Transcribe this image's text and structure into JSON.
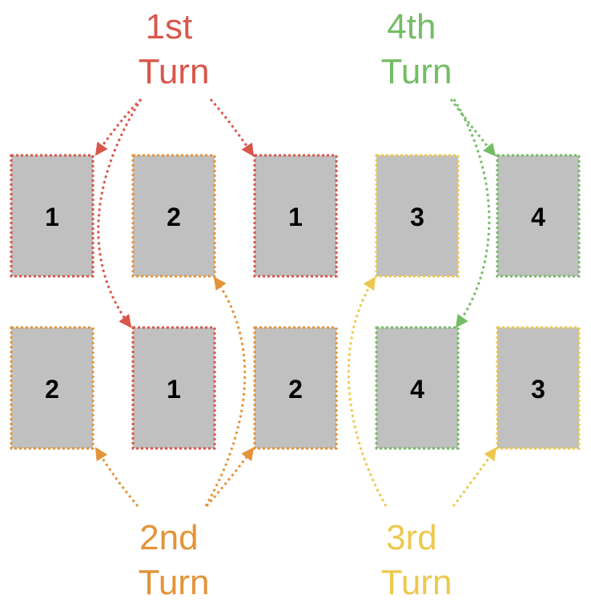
{
  "turns": [
    {
      "id": "t1",
      "line1": "1st",
      "line2": "Turn",
      "color": "#d9564b"
    },
    {
      "id": "t2",
      "line1": "2nd",
      "line2": "Turn",
      "color": "#e39438"
    },
    {
      "id": "t3",
      "line1": "3rd",
      "line2": "Turn",
      "color": "#ecc94e"
    },
    {
      "id": "t4",
      "line1": "4th",
      "line2": "Turn",
      "color": "#74bd64"
    }
  ],
  "cards": [
    {
      "id": "r1c1",
      "number": "1",
      "turn": "t1"
    },
    {
      "id": "r1c2",
      "number": "2",
      "turn": "t2"
    },
    {
      "id": "r1c3",
      "number": "1",
      "turn": "t1"
    },
    {
      "id": "r1c4",
      "number": "3",
      "turn": "t3"
    },
    {
      "id": "r1c5",
      "number": "4",
      "turn": "t4"
    },
    {
      "id": "r2c1",
      "number": "2",
      "turn": "t2"
    },
    {
      "id": "r2c2",
      "number": "1",
      "turn": "t1"
    },
    {
      "id": "r2c3",
      "number": "2",
      "turn": "t2"
    },
    {
      "id": "r2c4",
      "number": "4",
      "turn": "t4"
    },
    {
      "id": "r2c5",
      "number": "3",
      "turn": "t3"
    }
  ],
  "card_fill": "#c0c0c0",
  "arrows": [
    {
      "turn": "t1",
      "target": "r1c1"
    },
    {
      "turn": "t1",
      "target": "r2c2"
    },
    {
      "turn": "t1",
      "target": "r1c3"
    },
    {
      "turn": "t2",
      "target": "r2c1"
    },
    {
      "turn": "t2",
      "target": "r1c2"
    },
    {
      "turn": "t2",
      "target": "r2c3"
    },
    {
      "turn": "t3",
      "target": "r1c4"
    },
    {
      "turn": "t3",
      "target": "r2c5"
    },
    {
      "turn": "t4",
      "target": "r1c5"
    },
    {
      "turn": "t4",
      "target": "r2c4"
    }
  ]
}
